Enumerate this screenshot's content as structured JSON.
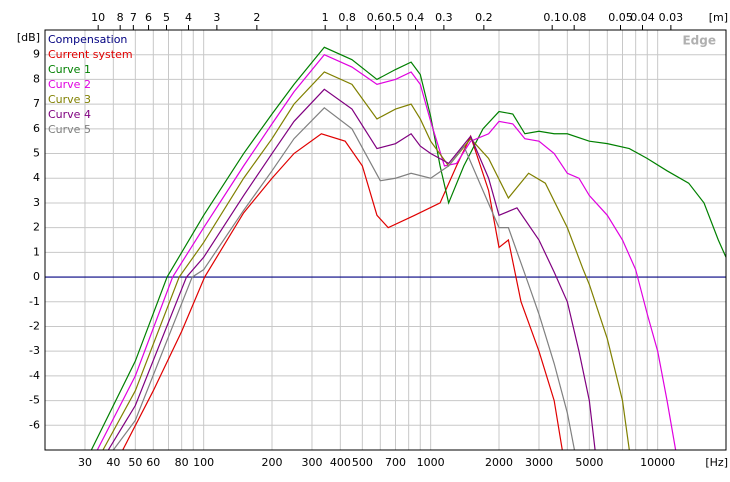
{
  "chart_data": {
    "type": "line",
    "x_unit": "[Hz]",
    "y_unit": "[dB]",
    "top_unit": "[m]",
    "watermark": "Edge",
    "xscale": "log",
    "xlim": [
      20,
      20000
    ],
    "ylim": [
      -7,
      10
    ],
    "grid": true,
    "xticks": [
      30,
      40,
      50,
      60,
      80,
      100,
      200,
      300,
      400,
      500,
      700,
      1000,
      2000,
      3000,
      5000,
      10000
    ],
    "minor_xticks": [
      70,
      90,
      600,
      800,
      900,
      4000,
      6000,
      7000,
      8000,
      9000
    ],
    "yticks": [
      -6,
      -5,
      -4,
      -3,
      -2,
      -1,
      0,
      1,
      2,
      3,
      4,
      5,
      6,
      7,
      8,
      9
    ],
    "top_ticks": [
      10,
      8,
      7,
      6,
      5,
      4,
      3,
      2,
      1,
      0.8,
      0.6,
      0.5,
      0.4,
      0.3,
      0.2,
      0.1,
      0.08,
      0.05,
      0.04,
      0.03
    ],
    "series": [
      {
        "name": "Compensation",
        "color": "#000080",
        "x": [
          20,
          20000
        ],
        "values": [
          0,
          0
        ]
      },
      {
        "name": "Current system",
        "color": "#e00000",
        "x": [
          44,
          60,
          80,
          101,
          150,
          200,
          250,
          330,
          420,
          500,
          580,
          650,
          850,
          1100,
          1300,
          1500,
          1800,
          2000,
          2200,
          2500,
          3000,
          3500,
          3800
        ],
        "values": [
          -7,
          -4.6,
          -2.2,
          0,
          2.6,
          4.0,
          5.0,
          5.8,
          5.5,
          4.5,
          2.5,
          2.0,
          2.5,
          3.0,
          4.5,
          5.7,
          3.5,
          1.2,
          1.5,
          -1,
          -3,
          -5,
          -7
        ]
      },
      {
        "name": "Curve 1",
        "color": "#008000",
        "x": [
          32,
          50,
          69,
          100,
          150,
          200,
          250,
          340,
          450,
          580,
          700,
          820,
          900,
          1000,
          1100,
          1200,
          1400,
          1700,
          2000,
          2300,
          2600,
          3000,
          3500,
          4000,
          5000,
          6000,
          7500,
          9000,
          11000,
          13700,
          16000,
          18500,
          20000
        ],
        "values": [
          -7,
          -3.4,
          0,
          2.5,
          5.0,
          6.6,
          7.8,
          9.3,
          8.8,
          8.0,
          8.4,
          8.7,
          8.2,
          6.5,
          4.5,
          3.0,
          4.5,
          6.0,
          6.7,
          6.6,
          5.8,
          5.9,
          5.8,
          5.8,
          5.5,
          5.4,
          5.2,
          4.8,
          4.3,
          3.8,
          3.0,
          1.5,
          0.8
        ]
      },
      {
        "name": "Curve 2",
        "color": "#e000e0",
        "x": [
          34,
          50,
          73,
          100,
          150,
          200,
          250,
          340,
          450,
          580,
          700,
          820,
          900,
          1000,
          1150,
          1300,
          1500,
          1800,
          2000,
          2300,
          2600,
          3000,
          3500,
          4000,
          4500,
          5000,
          6000,
          7000,
          8000,
          9000,
          10000,
          11000,
          12000
        ],
        "values": [
          -7,
          -4.0,
          0,
          2.0,
          4.5,
          6.2,
          7.5,
          9.0,
          8.5,
          7.8,
          8.0,
          8.3,
          7.8,
          6.3,
          4.5,
          4.6,
          5.5,
          5.8,
          6.3,
          6.2,
          5.6,
          5.5,
          5.0,
          4.2,
          4.0,
          3.3,
          2.5,
          1.5,
          0.3,
          -1.5,
          -3,
          -5,
          -7
        ]
      },
      {
        "name": "Curve 3",
        "color": "#808000",
        "x": [
          36,
          50,
          78,
          100,
          150,
          200,
          250,
          340,
          450,
          580,
          700,
          820,
          900,
          1000,
          1200,
          1500,
          1800,
          2200,
          2700,
          3200,
          4000,
          4700,
          5000,
          6000,
          7000,
          7500
        ],
        "values": [
          -7,
          -4.6,
          0,
          1.4,
          4.0,
          5.6,
          7.0,
          8.3,
          7.8,
          6.4,
          6.8,
          7.0,
          6.4,
          5.5,
          4.5,
          5.6,
          4.8,
          3.2,
          4.2,
          3.8,
          2.0,
          0.3,
          -0.3,
          -2.5,
          -5,
          -7
        ]
      },
      {
        "name": "Curve 4",
        "color": "#800080",
        "x": [
          38,
          50,
          84,
          100,
          150,
          200,
          250,
          340,
          450,
          580,
          700,
          820,
          900,
          1000,
          1200,
          1500,
          1800,
          2000,
          2400,
          3000,
          3500,
          4000,
          4500,
          5000,
          5300
        ],
        "values": [
          -7,
          -5.2,
          0,
          0.8,
          3.3,
          5.0,
          6.3,
          7.6,
          6.8,
          5.2,
          5.4,
          5.8,
          5.3,
          5.0,
          4.6,
          5.7,
          4.0,
          2.5,
          2.8,
          1.5,
          0.2,
          -1,
          -3,
          -5,
          -7
        ]
      },
      {
        "name": "Curve 5",
        "color": "#808080",
        "x": [
          40,
          50,
          89,
          100,
          150,
          200,
          250,
          340,
          450,
          600,
          700,
          820,
          1000,
          1200,
          1400,
          1700,
          2000,
          2200,
          2700,
          3000,
          3500,
          4000,
          4300
        ],
        "values": [
          -7,
          -5.8,
          0,
          0.3,
          2.7,
          4.3,
          5.6,
          6.85,
          6.0,
          3.9,
          4.0,
          4.2,
          4.0,
          4.5,
          5.3,
          3.5,
          2.0,
          2.0,
          -0.3,
          -1.5,
          -3.5,
          -5.5,
          -7
        ]
      }
    ]
  }
}
